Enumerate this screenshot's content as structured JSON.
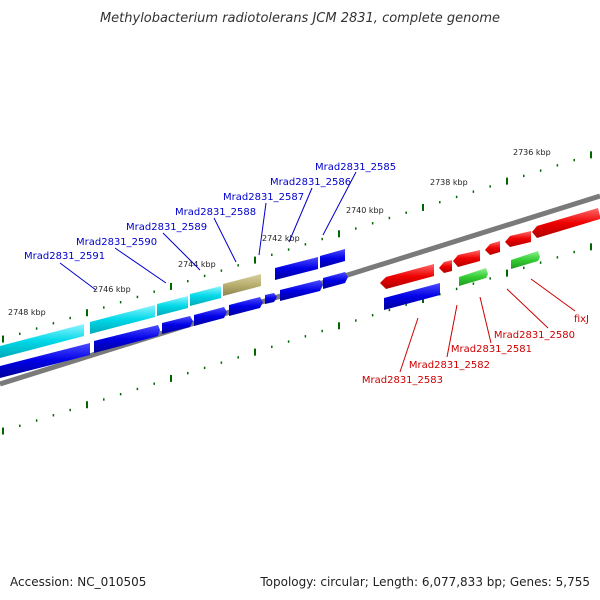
{
  "title": "Methylobacterium radiotolerans JCM 2831, complete genome",
  "footer": {
    "accession": "Accession: NC_010505",
    "summary": "Topology: circular; Length: 6,077,833 bp; Genes: 5,755"
  },
  "colors": {
    "blue_label": "#0000cc",
    "red_label": "#cc0000",
    "backbone": "#808080",
    "tick": "#006600",
    "cyan_gene": "#00d8e8",
    "blue_gene": "#0000e6",
    "olive_gene": "#b8ae6e",
    "red_gene": "#ee0000",
    "green_gene": "#33cc33"
  },
  "scale_labels": [
    "2736 kbp",
    "2738 kbp",
    "2740 kbp",
    "2742 kbp",
    "2744 kbp",
    "2746 kbp",
    "2748 kbp"
  ],
  "gene_labels_upper": [
    "Mrad2831_2585",
    "Mrad2831_2586",
    "Mrad2831_2587",
    "Mrad2831_2588",
    "Mrad2831_2589",
    "Mrad2831_2590",
    "Mrad2831_2591"
  ],
  "gene_labels_lower": [
    "fixJ",
    "Mrad2831_2580",
    "Mrad2831_2581",
    "Mrad2831_2582",
    "Mrad2831_2583"
  ]
}
